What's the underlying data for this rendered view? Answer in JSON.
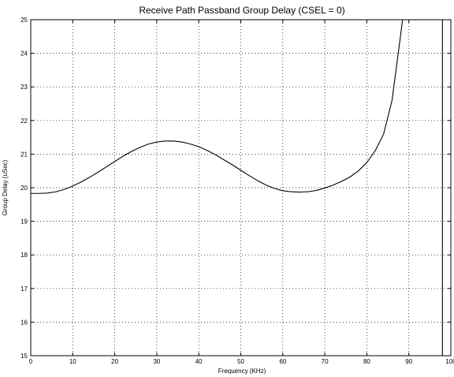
{
  "chart_data": {
    "type": "line",
    "title": "Receive Path Passband Group Delay (CSEL = 0)",
    "xlabel": "Frequency (KHz)",
    "ylabel": "Group Delay (uSec)",
    "xlim": [
      0,
      100
    ],
    "ylim": [
      15,
      25
    ],
    "xticks": [
      0,
      10,
      20,
      30,
      40,
      50,
      60,
      70,
      80,
      90,
      100
    ],
    "yticks": [
      15,
      16,
      17,
      18,
      19,
      20,
      21,
      22,
      23,
      24,
      25
    ],
    "grid": true,
    "legend": "none",
    "series": [
      {
        "x": [
          0,
          2,
          4,
          6,
          8,
          10,
          12,
          14,
          16,
          18,
          20,
          22,
          24,
          26,
          28,
          30,
          32,
          34,
          36,
          38,
          40,
          42,
          44,
          46,
          48,
          50,
          52,
          54,
          56,
          58,
          60,
          62,
          64,
          66,
          68,
          70,
          72,
          74,
          76,
          78,
          80,
          82,
          84,
          86,
          88,
          88.5,
          98,
          98
        ],
        "y": [
          19.83,
          19.83,
          19.84,
          19.88,
          19.95,
          20.05,
          20.17,
          20.31,
          20.46,
          20.62,
          20.78,
          20.94,
          21.08,
          21.2,
          21.3,
          21.36,
          21.39,
          21.39,
          21.36,
          21.3,
          21.22,
          21.11,
          20.98,
          20.83,
          20.68,
          20.52,
          20.36,
          20.21,
          20.08,
          19.98,
          19.91,
          19.88,
          19.87,
          19.88,
          19.92,
          19.99,
          20.08,
          20.19,
          20.32,
          20.5,
          20.75,
          21.1,
          21.6,
          22.6,
          24.5,
          25.0,
          25.0,
          15.0
        ]
      }
    ]
  }
}
